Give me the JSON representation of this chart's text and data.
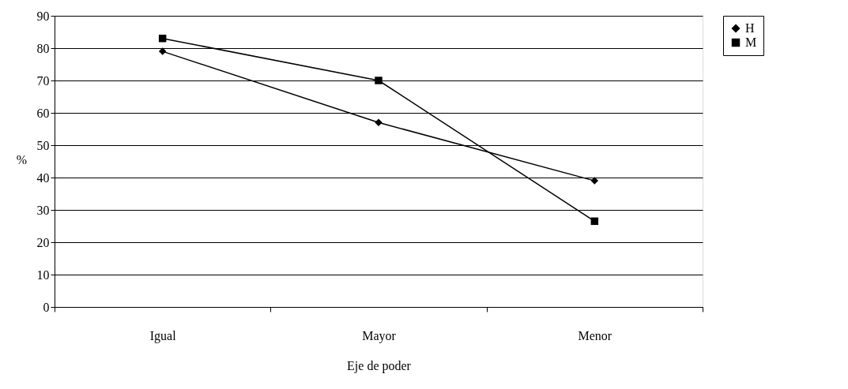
{
  "chart_data": {
    "type": "line",
    "xlabel": "Eje de poder",
    "ylabel": "%",
    "categories": [
      "Igual",
      "Mayor",
      "Menor"
    ],
    "series": [
      {
        "name": "H",
        "color": "#000000",
        "marker": "diamond",
        "values": [
          79,
          57,
          39
        ]
      },
      {
        "name": "M",
        "color": "#000000",
        "marker": "square",
        "values": [
          83,
          70,
          26.5
        ]
      }
    ],
    "ylim": [
      0,
      90
    ],
    "yticks": [
      0,
      10,
      20,
      30,
      40,
      50,
      60,
      70,
      80,
      90
    ],
    "grid": "y",
    "legend": "right",
    "line_style": "solid"
  }
}
